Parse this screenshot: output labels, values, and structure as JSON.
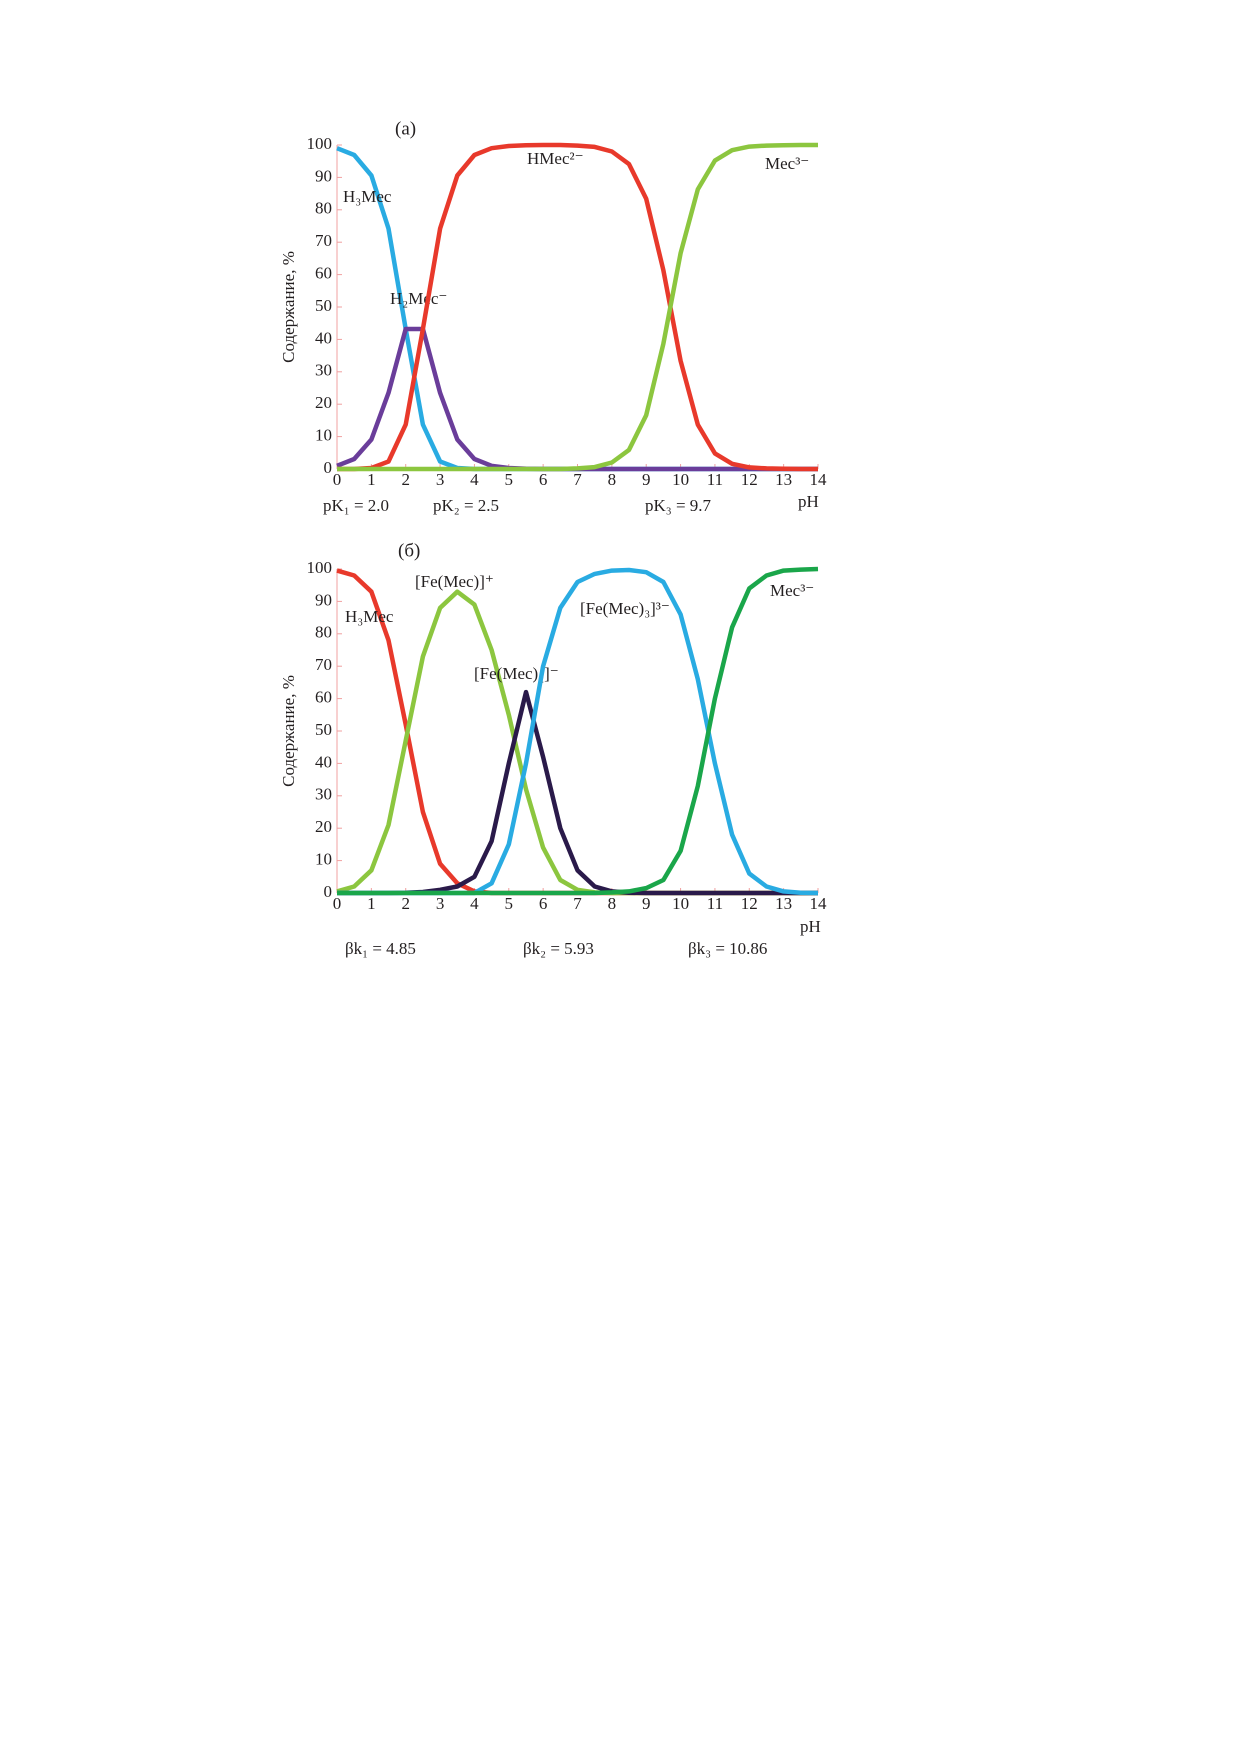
{
  "chart_data": [
    {
      "type": "line",
      "panel_label": "(а)",
      "x_label": "pH",
      "y_label": "Содержание, %",
      "x": [
        0,
        0.5,
        1,
        1.5,
        2,
        2.5,
        3,
        3.5,
        4,
        4.5,
        5,
        5.5,
        6,
        6.5,
        7,
        7.5,
        8,
        8.5,
        9,
        9.5,
        10,
        10.5,
        11,
        11.5,
        12,
        12.5,
        13,
        13.5,
        14
      ],
      "xlim": [
        0,
        14
      ],
      "ylim": [
        0,
        100
      ],
      "xticks": [
        0,
        1,
        2,
        3,
        4,
        5,
        6,
        7,
        8,
        9,
        10,
        11,
        12,
        13,
        14
      ],
      "yticks": [
        0,
        10,
        20,
        30,
        40,
        50,
        60,
        70,
        80,
        90,
        100
      ],
      "series": [
        {
          "name": "H₃Mec",
          "color": "#29abe2",
          "values": [
            99.0,
            96.9,
            90.6,
            74.2,
            43.2,
            13.7,
            2.3,
            0.3,
            0,
            0,
            0,
            0,
            0,
            0,
            0,
            0,
            0,
            0,
            0,
            0,
            0,
            0,
            0,
            0,
            0,
            0,
            0,
            0,
            0
          ]
        },
        {
          "name": "H₂Mec⁻",
          "color": "#6a3d9a",
          "values": [
            1.0,
            3.1,
            9.1,
            23.5,
            43.2,
            43.2,
            23.5,
            9.1,
            3.1,
            1.0,
            0.3,
            0.1,
            0,
            0,
            0,
            0,
            0,
            0,
            0,
            0,
            0,
            0,
            0,
            0,
            0,
            0,
            0,
            0,
            0
          ]
        },
        {
          "name": "HMec²⁻",
          "color": "#e8392b",
          "values": [
            0,
            0,
            0.3,
            2.3,
            13.7,
            43.2,
            74.2,
            90.6,
            96.9,
            99.0,
            99.7,
            99.9,
            100,
            100,
            99.8,
            99.4,
            98.0,
            94.1,
            83.4,
            61.3,
            33.4,
            13.7,
            4.8,
            1.6,
            0.5,
            0.2,
            0.1,
            0,
            0
          ]
        },
        {
          "name": "Mec³⁻",
          "color": "#8cc63f",
          "values": [
            0,
            0,
            0,
            0,
            0,
            0,
            0,
            0,
            0,
            0,
            0,
            0,
            0,
            0,
            0.2,
            0.6,
            2.0,
            5.9,
            16.6,
            38.7,
            66.6,
            86.3,
            95.2,
            98.4,
            99.5,
            99.8,
            99.9,
            100,
            100
          ]
        }
      ],
      "annotations": [
        "pK₁ = 2.0",
        "pK₂ = 2.5",
        "pK₃ = 9.7"
      ]
    },
    {
      "type": "line",
      "panel_label": "(б)",
      "x_label": "pH",
      "y_label": "Содержание, %",
      "x": [
        0,
        0.5,
        1,
        1.5,
        2,
        2.5,
        3,
        3.5,
        4,
        4.5,
        5,
        5.5,
        6,
        6.5,
        7,
        7.5,
        8,
        8.5,
        9,
        9.5,
        10,
        10.5,
        11,
        11.5,
        12,
        12.5,
        13,
        13.5,
        14
      ],
      "xlim": [
        0,
        14
      ],
      "ylim": [
        0,
        100
      ],
      "xticks": [
        0,
        1,
        2,
        3,
        4,
        5,
        6,
        7,
        8,
        9,
        10,
        11,
        12,
        13,
        14
      ],
      "yticks": [
        0,
        10,
        20,
        30,
        40,
        50,
        60,
        70,
        80,
        90,
        100
      ],
      "series": [
        {
          "name": "H₃Mec",
          "color": "#e8392b",
          "values": [
            99.5,
            98,
            93,
            78,
            52,
            25,
            9,
            3,
            0.5,
            0,
            0,
            0,
            0,
            0,
            0,
            0,
            0,
            0,
            0,
            0,
            0,
            0,
            0,
            0,
            0,
            0,
            0,
            0,
            0
          ]
        },
        {
          "name": "[Fe(Mec)]⁺",
          "color": "#8cc63f",
          "values": [
            0.5,
            2,
            7,
            21,
            47,
            73,
            88,
            93,
            89,
            75,
            55,
            32,
            14,
            4,
            1,
            0.2,
            0,
            0,
            0,
            0,
            0,
            0,
            0,
            0,
            0,
            0,
            0,
            0,
            0
          ]
        },
        {
          "name": "[Fe(Mec)₂]⁻",
          "color": "#2a1a4a",
          "values": [
            0,
            0,
            0,
            0,
            0.1,
            0.3,
            1,
            2,
            5,
            16,
            40,
            62,
            42,
            20,
            7,
            2,
            0.5,
            0.1,
            0,
            0,
            0,
            0,
            0,
            0,
            0,
            0,
            0,
            0,
            0
          ]
        },
        {
          "name": "[Fe(Mec)₃]³⁻",
          "color": "#29abe2",
          "values": [
            0,
            0,
            0,
            0,
            0,
            0,
            0,
            0,
            0,
            3,
            15,
            40,
            70,
            88,
            96,
            98.5,
            99.5,
            99.7,
            99,
            96,
            86,
            66,
            40,
            18,
            6,
            2,
            0.5,
            0.1,
            0
          ]
        },
        {
          "name": "Mec³⁻",
          "color": "#1aa64a",
          "values": [
            0,
            0,
            0,
            0,
            0,
            0,
            0,
            0,
            0,
            0,
            0,
            0,
            0,
            0,
            0,
            0,
            0.2,
            0.5,
            1.5,
            4,
            13,
            33,
            60,
            82,
            94,
            98,
            99.5,
            99.8,
            100
          ]
        }
      ],
      "annotations": [
        "βk₁ = 4.85",
        "βk₂ = 5.93",
        "βk₃ = 10.86"
      ]
    }
  ]
}
